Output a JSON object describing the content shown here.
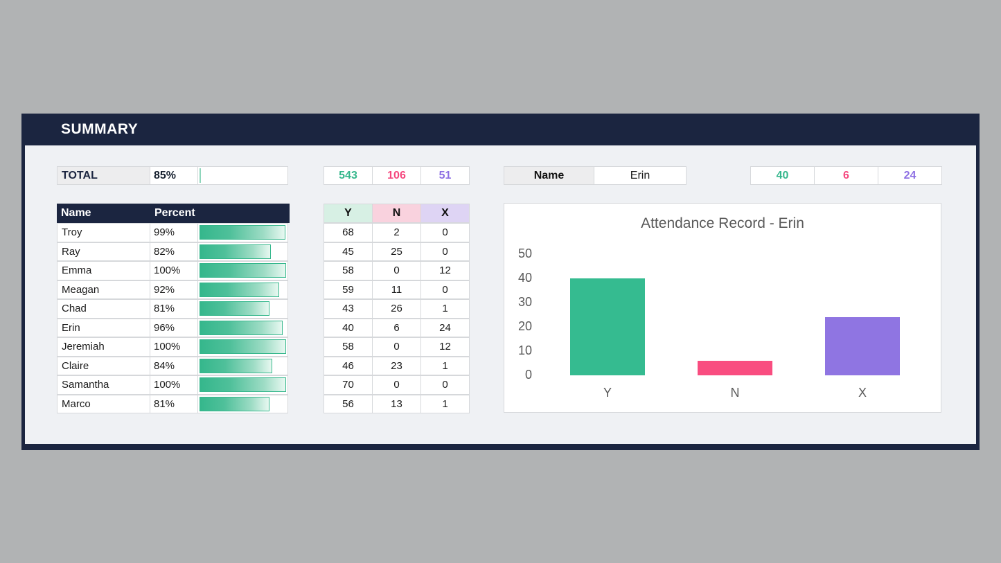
{
  "panel": {
    "title": "SUMMARY"
  },
  "colors": {
    "navy": "#1b2540",
    "background_gray": "#b1b3b4",
    "content_bg": "#eff1f4",
    "green": "#35b78c",
    "pink": "#f5477e",
    "purple": "#8d6fe3",
    "mint_header_bg": "#d7f0e4",
    "pink_header_bg": "#f9d2de",
    "lavender_header_bg": "#ded4f4"
  },
  "total_row": {
    "label": "TOTAL",
    "percent": "85%",
    "value": 85
  },
  "roster": {
    "headers": {
      "name": "Name",
      "percent": "Percent"
    },
    "rows": [
      {
        "name": "Troy",
        "percent": "99%",
        "value": 99
      },
      {
        "name": "Ray",
        "percent": "82%",
        "value": 82
      },
      {
        "name": "Emma",
        "percent": "100%",
        "value": 100
      },
      {
        "name": "Meagan",
        "percent": "92%",
        "value": 92
      },
      {
        "name": "Chad",
        "percent": "81%",
        "value": 81
      },
      {
        "name": "Erin",
        "percent": "96%",
        "value": 96
      },
      {
        "name": "Jeremiah",
        "percent": "100%",
        "value": 100
      },
      {
        "name": "Claire",
        "percent": "84%",
        "value": 84
      },
      {
        "name": "Samantha",
        "percent": "100%",
        "value": 100
      },
      {
        "name": "Marco",
        "percent": "81%",
        "value": 81
      }
    ]
  },
  "grand_totals": {
    "y": "543",
    "n": "106",
    "x": "51"
  },
  "ynx_table": {
    "headers": [
      "Y",
      "N",
      "X"
    ],
    "rows": [
      [
        68,
        2,
        0
      ],
      [
        45,
        25,
        0
      ],
      [
        58,
        0,
        12
      ],
      [
        59,
        11,
        0
      ],
      [
        43,
        26,
        1
      ],
      [
        40,
        6,
        24
      ],
      [
        58,
        0,
        12
      ],
      [
        46,
        23,
        1
      ],
      [
        70,
        0,
        0
      ],
      [
        56,
        13,
        1
      ]
    ]
  },
  "selector": {
    "label": "Name",
    "value": "Erin"
  },
  "selected_totals": {
    "y": "40",
    "n": "6",
    "x": "24"
  },
  "chart_data": {
    "type": "bar",
    "title": "Attendance Record - Erin",
    "categories": [
      "Y",
      "N",
      "X"
    ],
    "values": [
      40,
      6,
      24
    ],
    "colors": [
      "#35bb90",
      "#f94d80",
      "#8f75e2"
    ],
    "xlabel": "",
    "ylabel": "",
    "ylim": [
      0,
      50
    ],
    "yticks": [
      0,
      10,
      20,
      30,
      40,
      50
    ],
    "grid": false,
    "legend": false
  }
}
